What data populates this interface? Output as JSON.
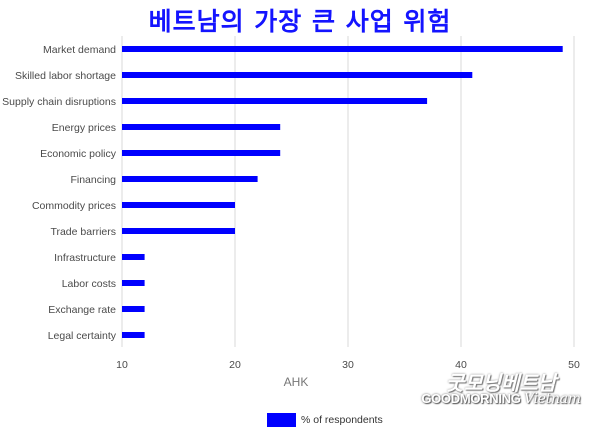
{
  "title": "베트남의 가장 큰 사업 위험",
  "chart_data": {
    "type": "bar",
    "orientation": "horizontal",
    "title": "베트남의 가장 큰 사업 위험",
    "xlabel": "AHK",
    "ylabel": "",
    "categories": [
      "Market demand",
      "Skilled labor shortage",
      "Supply chain disruptions",
      "Energy prices",
      "Economic policy",
      "Financing",
      "Commodity prices",
      "Trade barriers",
      "Infrastructure",
      "Labor costs",
      "Exchange rate",
      "Legal certainty"
    ],
    "series": [
      {
        "name": "% of respondents",
        "color": "#0000ff",
        "values": [
          49,
          41,
          37,
          24,
          24,
          22,
          20,
          20,
          12,
          12,
          12,
          12
        ]
      }
    ],
    "xlim": [
      10,
      50
    ],
    "xticks": [
      "10",
      "20",
      "30",
      "40",
      "50"
    ],
    "grid": true,
    "legend_position": "bottom-center"
  },
  "legend": {
    "label": "% of respondents",
    "color": "#0000ff"
  },
  "watermark": {
    "script_text": "굿모닝베트남",
    "main_text": "GOODMORNING",
    "italic_text": "Vietnam"
  }
}
